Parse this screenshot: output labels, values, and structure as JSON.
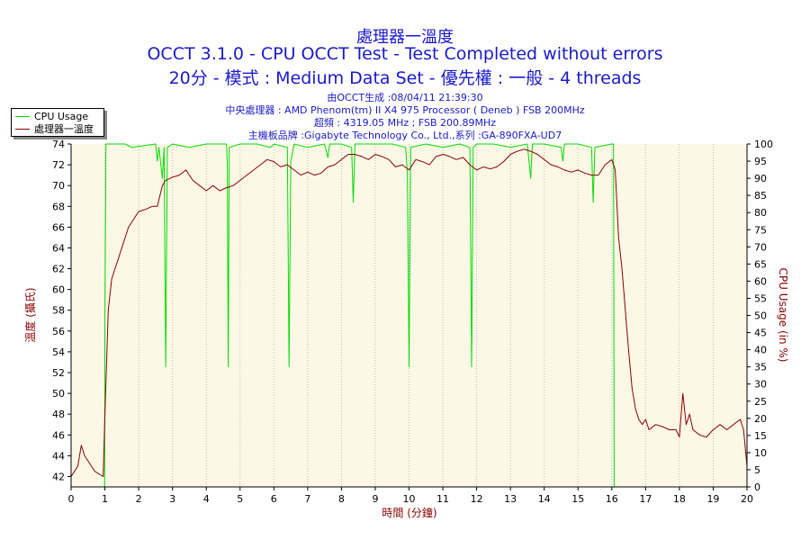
{
  "chart_data": {
    "type": "line",
    "title": "處理器一溫度",
    "subtitle_1": "OCCT 3.1.0 - CPU OCCT Test - Test Completed without errors",
    "subtitle_2": "20分 - 模式 : Medium Data Set - 優先權 : 一般 - 4 threads",
    "info_lines": [
      "由OCCT生成 :08/04/11 21:39:30",
      "中央處理器 : AMD Phenom(tm) II X4 975 Processor ( Deneb ) FSB 200MHz",
      "超頻 : 4319.05 MHz ; FSB 200.89MHz",
      "主機板品牌 :Gigabyte Technology Co., Ltd.,系列 :GA-890FXA-UD7"
    ],
    "xlabel": "時間 (分鐘)",
    "ylabel_left": "溫度 (攝氏)",
    "ylabel_right": "CPU Usage (in %)",
    "xlim": [
      0,
      20
    ],
    "ylim_left": [
      41,
      74
    ],
    "ylim_right": [
      0,
      100
    ],
    "x_ticks": [
      0,
      1,
      2,
      3,
      4,
      5,
      6,
      7,
      8,
      9,
      10,
      11,
      12,
      13,
      14,
      15,
      16,
      17,
      18,
      19,
      20
    ],
    "y_left_ticks": [
      42,
      44,
      46,
      48,
      50,
      52,
      54,
      56,
      58,
      60,
      62,
      64,
      66,
      68,
      70,
      72,
      74
    ],
    "y_right_ticks": [
      0,
      5,
      10,
      15,
      20,
      25,
      30,
      35,
      40,
      45,
      50,
      55,
      60,
      65,
      70,
      75,
      80,
      85,
      90,
      95,
      100
    ],
    "grid": "vertical",
    "legend_position": "top-left",
    "series": [
      {
        "name": "CPU Usage",
        "axis": "right",
        "color": "#00dd00",
        "points": [
          [
            0,
            0
          ],
          [
            0.99,
            0
          ],
          [
            1.0,
            50
          ],
          [
            1.03,
            100
          ],
          [
            1.6,
            100
          ],
          [
            1.8,
            99
          ],
          [
            2.5,
            100
          ],
          [
            2.55,
            95
          ],
          [
            2.6,
            99
          ],
          [
            2.7,
            90
          ],
          [
            2.75,
            99
          ],
          [
            2.8,
            35
          ],
          [
            2.85,
            99
          ],
          [
            3.0,
            100
          ],
          [
            3.5,
            99
          ],
          [
            4.0,
            100
          ],
          [
            4.5,
            100
          ],
          [
            4.6,
            100
          ],
          [
            4.62,
            95
          ],
          [
            4.65,
            35
          ],
          [
            4.68,
            99
          ],
          [
            5.0,
            100
          ],
          [
            5.5,
            100
          ],
          [
            5.9,
            99
          ],
          [
            6.0,
            100
          ],
          [
            6.4,
            99
          ],
          [
            6.45,
            35
          ],
          [
            6.5,
            95
          ],
          [
            6.6,
            100
          ],
          [
            7.0,
            99
          ],
          [
            7.5,
            100
          ],
          [
            7.6,
            96
          ],
          [
            7.65,
            100
          ],
          [
            8.0,
            100
          ],
          [
            8.3,
            99
          ],
          [
            8.35,
            83
          ],
          [
            8.4,
            100
          ],
          [
            9.0,
            100
          ],
          [
            9.5,
            100
          ],
          [
            9.9,
            99
          ],
          [
            9.95,
            92
          ],
          [
            10.0,
            35
          ],
          [
            10.05,
            99
          ],
          [
            10.5,
            100
          ],
          [
            11.0,
            99
          ],
          [
            11.5,
            100
          ],
          [
            11.8,
            99
          ],
          [
            11.85,
            35
          ],
          [
            11.9,
            99
          ],
          [
            12.0,
            100
          ],
          [
            12.5,
            100
          ],
          [
            13.0,
            99
          ],
          [
            13.5,
            100
          ],
          [
            13.6,
            90
          ],
          [
            13.65,
            100
          ],
          [
            14.0,
            100
          ],
          [
            14.5,
            99
          ],
          [
            14.55,
            95
          ],
          [
            14.6,
            100
          ],
          [
            15.0,
            100
          ],
          [
            15.4,
            99
          ],
          [
            15.45,
            83
          ],
          [
            15.5,
            99
          ],
          [
            16.0,
            100
          ],
          [
            16.05,
            100
          ],
          [
            16.07,
            0
          ],
          [
            20,
            0
          ]
        ]
      },
      {
        "name": "處理器一溫度",
        "axis": "left",
        "color": "#8b0000",
        "points": [
          [
            0,
            42
          ],
          [
            0.1,
            42.5
          ],
          [
            0.2,
            43
          ],
          [
            0.3,
            45
          ],
          [
            0.4,
            44
          ],
          [
            0.5,
            43.5
          ],
          [
            0.6,
            43
          ],
          [
            0.7,
            42.5
          ],
          [
            0.8,
            42.3
          ],
          [
            0.95,
            42
          ],
          [
            1.0,
            48
          ],
          [
            1.1,
            58
          ],
          [
            1.2,
            61
          ],
          [
            1.3,
            62
          ],
          [
            1.4,
            63
          ],
          [
            1.5,
            64
          ],
          [
            1.6,
            65
          ],
          [
            1.7,
            66
          ],
          [
            1.8,
            66.5
          ],
          [
            1.9,
            67
          ],
          [
            2.0,
            67.5
          ],
          [
            2.2,
            67.7
          ],
          [
            2.4,
            68
          ],
          [
            2.55,
            68
          ],
          [
            2.7,
            70
          ],
          [
            2.8,
            70.5
          ],
          [
            3.0,
            70.8
          ],
          [
            3.2,
            71
          ],
          [
            3.4,
            71.5
          ],
          [
            3.6,
            70.5
          ],
          [
            3.8,
            70
          ],
          [
            4.0,
            69.5
          ],
          [
            4.2,
            70
          ],
          [
            4.4,
            69.5
          ],
          [
            4.6,
            69.8
          ],
          [
            4.8,
            70
          ],
          [
            5.0,
            70.5
          ],
          [
            5.2,
            71
          ],
          [
            5.4,
            71.5
          ],
          [
            5.6,
            72
          ],
          [
            5.8,
            72.5
          ],
          [
            6.0,
            72.3
          ],
          [
            6.2,
            71.8
          ],
          [
            6.4,
            72
          ],
          [
            6.6,
            71.5
          ],
          [
            6.8,
            71
          ],
          [
            7.0,
            71.3
          ],
          [
            7.2,
            71
          ],
          [
            7.4,
            71.2
          ],
          [
            7.6,
            71.8
          ],
          [
            7.8,
            72
          ],
          [
            8.0,
            72.5
          ],
          [
            8.2,
            73
          ],
          [
            8.4,
            73
          ],
          [
            8.6,
            72.8
          ],
          [
            8.8,
            72.5
          ],
          [
            9.0,
            73
          ],
          [
            9.2,
            72.8
          ],
          [
            9.4,
            72.5
          ],
          [
            9.6,
            71.8
          ],
          [
            9.8,
            72
          ],
          [
            10.0,
            71.5
          ],
          [
            10.2,
            72.5
          ],
          [
            10.4,
            72.3
          ],
          [
            10.6,
            72
          ],
          [
            10.8,
            72.8
          ],
          [
            11.0,
            73
          ],
          [
            11.2,
            72.8
          ],
          [
            11.4,
            72.5
          ],
          [
            11.6,
            72.7
          ],
          [
            11.8,
            72
          ],
          [
            12.0,
            71.5
          ],
          [
            12.2,
            71.8
          ],
          [
            12.4,
            71.6
          ],
          [
            12.6,
            71.8
          ],
          [
            12.8,
            72.3
          ],
          [
            13.0,
            73
          ],
          [
            13.2,
            73.3
          ],
          [
            13.4,
            73.5
          ],
          [
            13.6,
            73.3
          ],
          [
            13.8,
            73
          ],
          [
            14.0,
            72.5
          ],
          [
            14.2,
            72
          ],
          [
            14.4,
            71.8
          ],
          [
            14.6,
            71.5
          ],
          [
            14.8,
            71.3
          ],
          [
            15.0,
            71.5
          ],
          [
            15.2,
            71.2
          ],
          [
            15.4,
            71
          ],
          [
            15.6,
            71
          ],
          [
            15.8,
            72
          ],
          [
            16.0,
            72.5
          ],
          [
            16.1,
            71.5
          ],
          [
            16.2,
            65
          ],
          [
            16.3,
            62
          ],
          [
            16.4,
            58
          ],
          [
            16.5,
            54
          ],
          [
            16.6,
            50.5
          ],
          [
            16.7,
            48.5
          ],
          [
            16.8,
            47.5
          ],
          [
            16.9,
            47
          ],
          [
            17.0,
            47.5
          ],
          [
            17.1,
            46.5
          ],
          [
            17.3,
            47
          ],
          [
            17.5,
            46.8
          ],
          [
            17.7,
            46.5
          ],
          [
            17.9,
            46.5
          ],
          [
            18.0,
            45.8
          ],
          [
            18.1,
            50
          ],
          [
            18.2,
            47
          ],
          [
            18.3,
            48
          ],
          [
            18.4,
            46.5
          ],
          [
            18.6,
            46
          ],
          [
            18.8,
            45.8
          ],
          [
            19.0,
            46.5
          ],
          [
            19.2,
            47
          ],
          [
            19.4,
            46.5
          ],
          [
            19.6,
            47
          ],
          [
            19.8,
            47.5
          ],
          [
            19.9,
            46.5
          ],
          [
            20.0,
            43
          ]
        ]
      }
    ]
  },
  "legend": {
    "items": [
      "CPU Usage",
      "處理器一溫度"
    ]
  }
}
